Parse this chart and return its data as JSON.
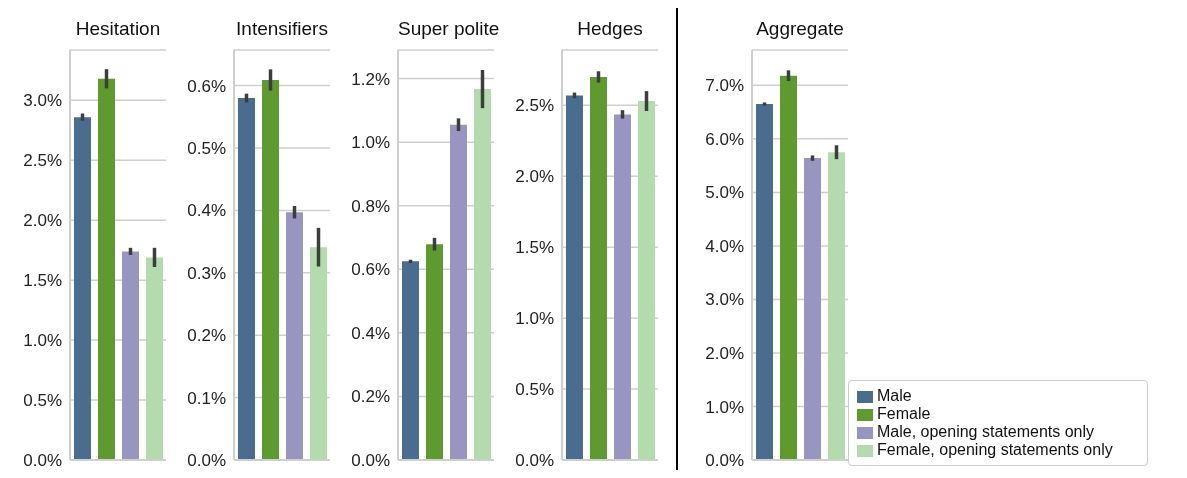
{
  "chart_data": [
    {
      "type": "bar",
      "title": "Hesitation",
      "categories": [
        null
      ],
      "ylim": [
        0,
        3.42
      ],
      "yticks": [
        {
          "value": 0,
          "label": "0.0%"
        },
        {
          "value": 0.5,
          "label": "0.5%"
        },
        {
          "value": 1,
          "label": "1.0%"
        },
        {
          "value": 1.5,
          "label": "1.5%"
        },
        {
          "value": 2,
          "label": "2.0%"
        },
        {
          "value": 2.5,
          "label": "2.5%"
        },
        {
          "value": 3,
          "label": "3.0%"
        }
      ],
      "grid": "y",
      "series": [
        {
          "color": "#4a6d8f",
          "values": [
            2.86
          ],
          "errors": [
            0.03
          ]
        },
        {
          "color": "#5f9a30",
          "values": [
            3.18
          ],
          "errors": [
            0.08
          ]
        },
        {
          "color": "#9896c0",
          "values": [
            1.74
          ],
          "errors": [
            0.03
          ]
        },
        {
          "color": "#b3dbae",
          "values": [
            1.69
          ],
          "errors": [
            0.08
          ]
        }
      ]
    },
    {
      "type": "bar",
      "title": "Intensifiers",
      "categories": [
        null
      ],
      "ylim": [
        0,
        0.657
      ],
      "yticks": [
        {
          "value": 0,
          "label": "0.0%"
        },
        {
          "value": 0.1,
          "label": "0.1%"
        },
        {
          "value": 0.2,
          "label": "0.2%"
        },
        {
          "value": 0.3,
          "label": "0.3%"
        },
        {
          "value": 0.4,
          "label": "0.4%"
        },
        {
          "value": 0.5,
          "label": "0.5%"
        },
        {
          "value": 0.6,
          "label": "0.6%"
        }
      ],
      "grid": "y",
      "series": [
        {
          "color": "#4a6d8f",
          "values": [
            0.58
          ],
          "errors": [
            0.007
          ]
        },
        {
          "color": "#5f9a30",
          "values": [
            0.609
          ],
          "errors": [
            0.017
          ]
        },
        {
          "color": "#9896c0",
          "values": [
            0.397
          ],
          "errors": [
            0.01
          ]
        },
        {
          "color": "#b3dbae",
          "values": [
            0.341
          ],
          "errors": [
            0.031
          ]
        }
      ]
    },
    {
      "type": "bar",
      "title": "Super polite",
      "categories": [
        null
      ],
      "ylim": [
        0,
        1.29
      ],
      "yticks": [
        {
          "value": 0,
          "label": "0.0%"
        },
        {
          "value": 0.2,
          "label": "0.2%"
        },
        {
          "value": 0.4,
          "label": "0.4%"
        },
        {
          "value": 0.6,
          "label": "0.6%"
        },
        {
          "value": 0.8,
          "label": "0.8%"
        },
        {
          "value": 1,
          "label": "1.0%"
        },
        {
          "value": 1.2,
          "label": "1.2%"
        }
      ],
      "grid": "y",
      "series": [
        {
          "color": "#4a6d8f",
          "values": [
            0.625
          ],
          "errors": [
            0.005
          ]
        },
        {
          "color": "#5f9a30",
          "values": [
            0.679
          ],
          "errors": [
            0.02
          ]
        },
        {
          "color": "#9896c0",
          "values": [
            1.055
          ],
          "errors": [
            0.02
          ]
        },
        {
          "color": "#b3dbae",
          "values": [
            1.167
          ],
          "errors": [
            0.06
          ]
        }
      ]
    },
    {
      "type": "bar",
      "title": "Hedges",
      "categories": [
        null
      ],
      "ylim": [
        0,
        2.89
      ],
      "yticks": [
        {
          "value": 0,
          "label": "0.0%"
        },
        {
          "value": 0.5,
          "label": "0.5%"
        },
        {
          "value": 1,
          "label": "1.0%"
        },
        {
          "value": 1.5,
          "label": "1.5%"
        },
        {
          "value": 2,
          "label": "2.0%"
        },
        {
          "value": 2.5,
          "label": "2.5%"
        }
      ],
      "grid": "y",
      "series": [
        {
          "color": "#4a6d8f",
          "values": [
            2.57
          ],
          "errors": [
            0.02
          ]
        },
        {
          "color": "#5f9a30",
          "values": [
            2.7
          ],
          "errors": [
            0.04
          ]
        },
        {
          "color": "#9896c0",
          "values": [
            2.436
          ],
          "errors": [
            0.03
          ]
        },
        {
          "color": "#b3dbae",
          "values": [
            2.53
          ],
          "errors": [
            0.07
          ]
        }
      ]
    },
    {
      "type": "bar",
      "title": "Aggregate",
      "categories": [
        null
      ],
      "ylim": [
        0,
        7.66
      ],
      "yticks": [
        {
          "value": 0,
          "label": "0.0%"
        },
        {
          "value": 1,
          "label": "1.0%"
        },
        {
          "value": 2,
          "label": "2.0%"
        },
        {
          "value": 3,
          "label": "3.0%"
        },
        {
          "value": 4,
          "label": "4.0%"
        },
        {
          "value": 5,
          "label": "5.0%"
        },
        {
          "value": 6,
          "label": "6.0%"
        },
        {
          "value": 7,
          "label": "7.0%"
        }
      ],
      "grid": "y",
      "legend": "right",
      "series": [
        {
          "name": "Male",
          "color": "#4a6d8f",
          "values": [
            6.65
          ],
          "errors": [
            0.03
          ]
        },
        {
          "name": "Female",
          "color": "#5f9a30",
          "values": [
            7.18
          ],
          "errors": [
            0.1
          ]
        },
        {
          "name": "Male, opening statements only",
          "color": "#9896c0",
          "values": [
            5.64
          ],
          "errors": [
            0.05
          ]
        },
        {
          "name": "Female, opening statements only",
          "color": "#b3dbae",
          "values": [
            5.75
          ],
          "errors": [
            0.13
          ]
        }
      ]
    }
  ]
}
